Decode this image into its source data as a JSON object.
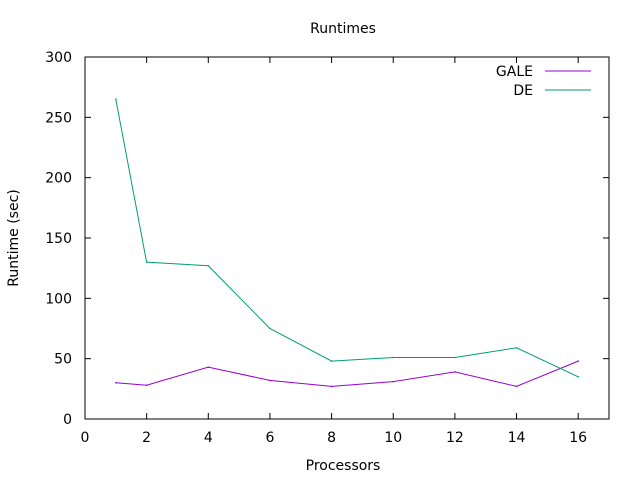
{
  "chart_data": {
    "type": "line",
    "title": "Runtimes",
    "xlabel": "Processors",
    "ylabel": "Runtime (sec)",
    "xlim": [
      0,
      17
    ],
    "ylim": [
      0,
      300
    ],
    "x_ticks": [
      0,
      2,
      4,
      6,
      8,
      10,
      12,
      14,
      16
    ],
    "y_ticks": [
      0,
      50,
      100,
      150,
      200,
      250,
      300
    ],
    "grid": false,
    "legend_position": "top-right",
    "series": [
      {
        "name": "GALE",
        "color": "#9400d3",
        "x": [
          1,
          2,
          4,
          6,
          8,
          10,
          12,
          14,
          16
        ],
        "y": [
          30,
          28,
          43,
          32,
          27,
          31,
          39,
          27,
          48
        ]
      },
      {
        "name": "DE",
        "color": "#009e73",
        "x": [
          1,
          2,
          4,
          6,
          8,
          10,
          12,
          14,
          16
        ],
        "y": [
          265,
          130,
          127,
          75,
          48,
          51,
          51,
          59,
          35
        ]
      }
    ]
  }
}
